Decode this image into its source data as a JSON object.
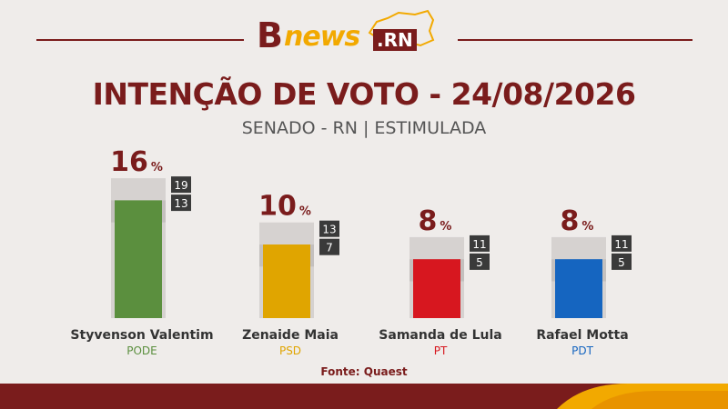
{
  "brand": {
    "logo_b": "B",
    "logo_news": "news",
    "logo_rn": ".RN",
    "colors": {
      "primary": "#7a1c1c",
      "accent": "#f2a900"
    }
  },
  "header": {
    "title": "INTENÇÃO DE VOTO - 24/08/2026",
    "subtitle": "SENADO - RN | ESTIMULADA"
  },
  "source": "Fonte: Quaest",
  "chart_data": {
    "type": "bar",
    "unit": "%",
    "ylim": [
      0,
      20
    ],
    "categories": [
      "Styvenson Valentim",
      "Zenaide Maia",
      "Samanda de Lula",
      "Rafael Motta"
    ],
    "parties": [
      "PODE",
      "PSD",
      "PT",
      "PDT"
    ],
    "values": [
      16,
      10,
      8,
      8
    ],
    "margin_upper": [
      19,
      13,
      11,
      11
    ],
    "margin_lower": [
      13,
      7,
      5,
      5
    ],
    "colors": [
      "#5b8f3e",
      "#e0a500",
      "#d7171f",
      "#1565c0"
    ]
  }
}
